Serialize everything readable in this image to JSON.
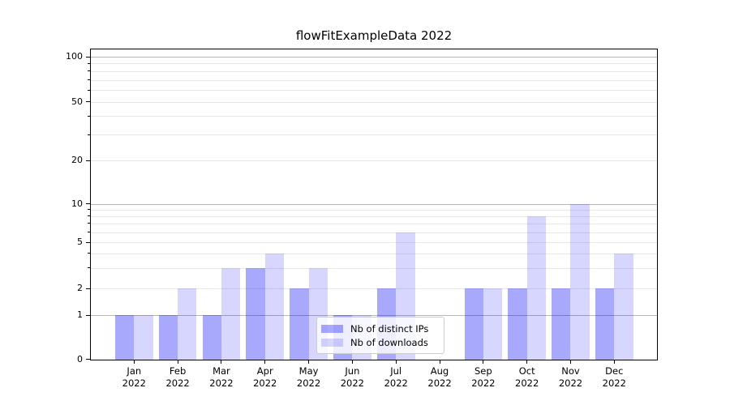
{
  "figure": {
    "title": "flowFitExampleData 2022"
  },
  "chart_data": {
    "type": "bar",
    "title": "flowFitExampleData 2022",
    "categories": [
      "Jan",
      "Feb",
      "Mar",
      "Apr",
      "May",
      "Jun",
      "Jul",
      "Aug",
      "Sep",
      "Oct",
      "Nov",
      "Dec"
    ],
    "category_year": "2022",
    "series": [
      {
        "name": "Nb of distinct IPs",
        "values": [
          1,
          1,
          1,
          3,
          2,
          1,
          2,
          0,
          2,
          2,
          2,
          2
        ],
        "color": "rgba(0,0,250,0.34)"
      },
      {
        "name": "Nb of downloads",
        "values": [
          1,
          2,
          3,
          4,
          3,
          1,
          6,
          0,
          2,
          8,
          10,
          4
        ],
        "color": "rgba(0,0,250,0.16)"
      }
    ],
    "xlabel": "",
    "ylabel": "",
    "yscale": "symlog",
    "ylim": [
      0,
      100
    ],
    "ytick_values": [
      0,
      1,
      2,
      5,
      10,
      20,
      50,
      100
    ],
    "ytick_labels": [
      "0",
      "1",
      "2",
      "5",
      "10",
      "20",
      "50",
      "100"
    ],
    "major_gridline_values": [
      1,
      10,
      100
    ],
    "minor_gridline_values": [
      2,
      3,
      4,
      5,
      6,
      7,
      8,
      9,
      20,
      30,
      40,
      50,
      60,
      70,
      80,
      90
    ],
    "minor_unlabeled_tick_values": [
      3,
      4,
      6,
      7,
      8,
      9,
      30,
      40,
      60,
      70,
      80,
      90
    ],
    "grid": "both",
    "legend": {
      "position": "lower center",
      "entries": [
        "Nb of distinct IPs",
        "Nb of downloads"
      ]
    }
  },
  "colors": {
    "bar_dark": "rgba(0,0,250,0.34)",
    "bar_light": "rgba(0,0,250,0.16)",
    "grid_major": "#b8b8b8",
    "grid_minor": "#e8e8e8",
    "axis": "#000000",
    "text": "#000000",
    "legend_border": "#cccccc",
    "legend_bg": "rgba(255,255,255,0.8)"
  }
}
